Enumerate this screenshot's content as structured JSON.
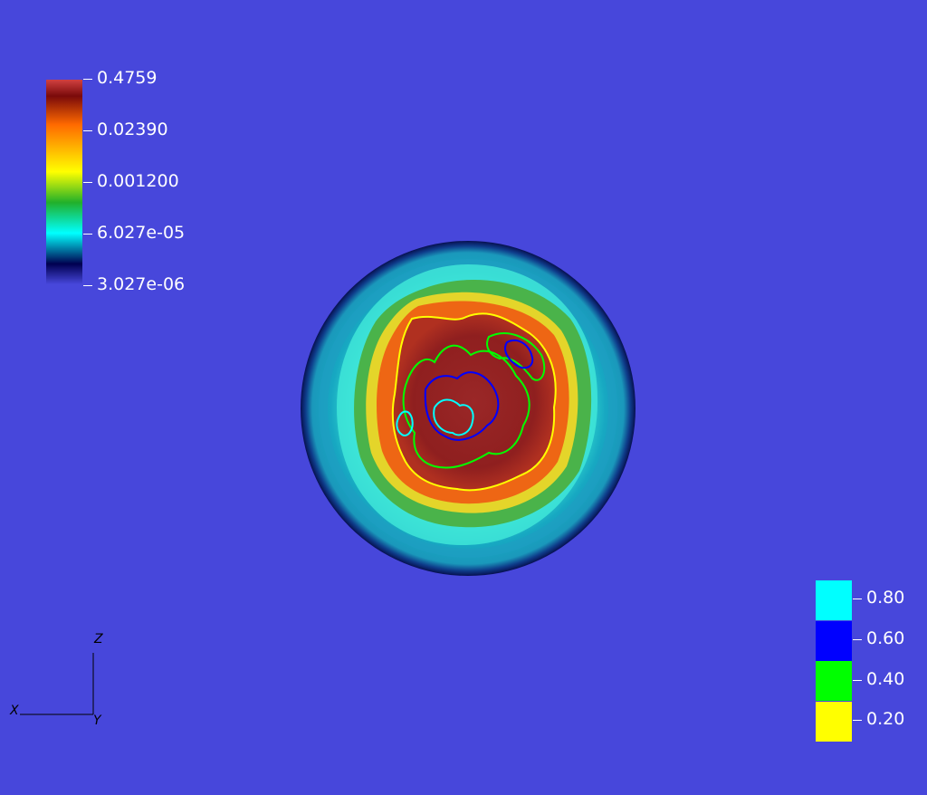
{
  "colors": {
    "background": "#4747db",
    "outer_shell": "#1fb3c9",
    "shell_edge": "#0c1a6a",
    "mid_ring": "#2ee0d0",
    "green_band": "#3fb350",
    "yellow_band": "#e6e02a",
    "orange_band": "#ef6d16",
    "core": "#8f1f1f"
  },
  "colorbar": {
    "gradient_colors": [
      "#d14040",
      "#7a0a0a",
      "#ff6a00",
      "#ffff00",
      "#21b02a",
      "#00ffff",
      "#000050",
      "#4747db"
    ],
    "labels": [
      "0.4759",
      "0.02390",
      "0.001200",
      "6.027e-05",
      "3.027e-06"
    ]
  },
  "contour_legend": {
    "items": [
      {
        "label": "0.80",
        "color": "#00ffff"
      },
      {
        "label": "0.60",
        "color": "#0000ff"
      },
      {
        "label": "0.40",
        "color": "#00ff00"
      },
      {
        "label": "0.20",
        "color": "#ffff00"
      }
    ]
  },
  "axes": {
    "z": "Z",
    "x": "X",
    "y": "Y"
  }
}
